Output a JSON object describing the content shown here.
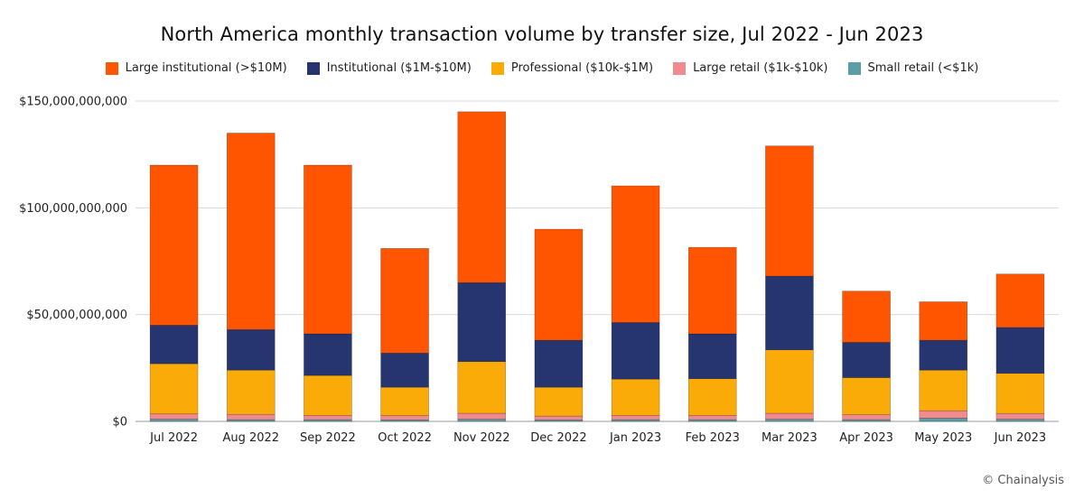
{
  "chart_data": {
    "type": "bar",
    "stacked": true,
    "title": "North America monthly transaction volume by transfer size, Jul 2022 - Jun 2023",
    "categories": [
      "Jul 2022",
      "Aug 2022",
      "Sep 2022",
      "Oct 2022",
      "Nov 2022",
      "Dec 2022",
      "Jan 2023",
      "Feb 2023",
      "Mar 2023",
      "Apr 2023",
      "May 2023",
      "Jun 2023"
    ],
    "series": [
      {
        "name": "Small retail (<$1k)",
        "color": "#5a9ea6",
        "values": [
          1000000000.0,
          800000000.0,
          800000000.0,
          700000000.0,
          1000000000.0,
          700000000.0,
          800000000.0,
          800000000.0,
          1000000000.0,
          800000000.0,
          1500000000.0,
          1000000000.0
        ]
      },
      {
        "name": "Large retail ($1k-$10k)",
        "color": "#f08a8f",
        "values": [
          2500000000.0,
          2500000000.0,
          2000000000.0,
          2000000000.0,
          2800000000.0,
          1800000000.0,
          2000000000.0,
          2000000000.0,
          2800000000.0,
          2300000000.0,
          3500000000.0,
          2700000000.0
        ]
      },
      {
        "name": "Professional ($10k-$1M)",
        "color": "#fbab08",
        "values": [
          23500000000.0,
          20700000000.0,
          18700000000.0,
          13300000000.0,
          24200000000.0,
          13500000000.0,
          17000000000.0,
          17200000000.0,
          29700000000.0,
          17400000000.0,
          19000000000.0,
          18800000000.0
        ]
      },
      {
        "name": "Institutional ($1M-$10M)",
        "color": "#263470",
        "values": [
          18000000000.0,
          19000000000.0,
          19500000000.0,
          16000000000.0,
          37000000000.0,
          22000000000.0,
          26500000000.0,
          21000000000.0,
          34500000000.0,
          16500000000.0,
          14000000000.0,
          21500000000.0
        ]
      },
      {
        "name": "Large institutional (>$10M)",
        "color": "#ff5400",
        "values": [
          75000000000.0,
          92000000000.0,
          79000000000.0,
          49000000000.0,
          80000000000.0,
          52000000000.0,
          64000000000.0,
          40500000000.0,
          61000000000.0,
          24000000000.0,
          18000000000.0,
          25000000000.0
        ]
      }
    ],
    "legend_order": [
      "Large institutional (>$10M)",
      "Institutional ($1M-$10M)",
      "Professional ($10k-$1M)",
      "Large retail ($1k-$10k)",
      "Small retail (<$1k)"
    ],
    "ylim": [
      0,
      150000000000
    ],
    "yticks": [
      0,
      50000000000,
      100000000000,
      150000000000
    ],
    "ytick_labels": [
      "$0",
      "$50,000,000,000",
      "$100,000,000,000",
      "$150,000,000,000"
    ],
    "xlabel": "",
    "ylabel": "",
    "grid": true,
    "legend_position": "top-center"
  },
  "credit": "© Chainalysis"
}
